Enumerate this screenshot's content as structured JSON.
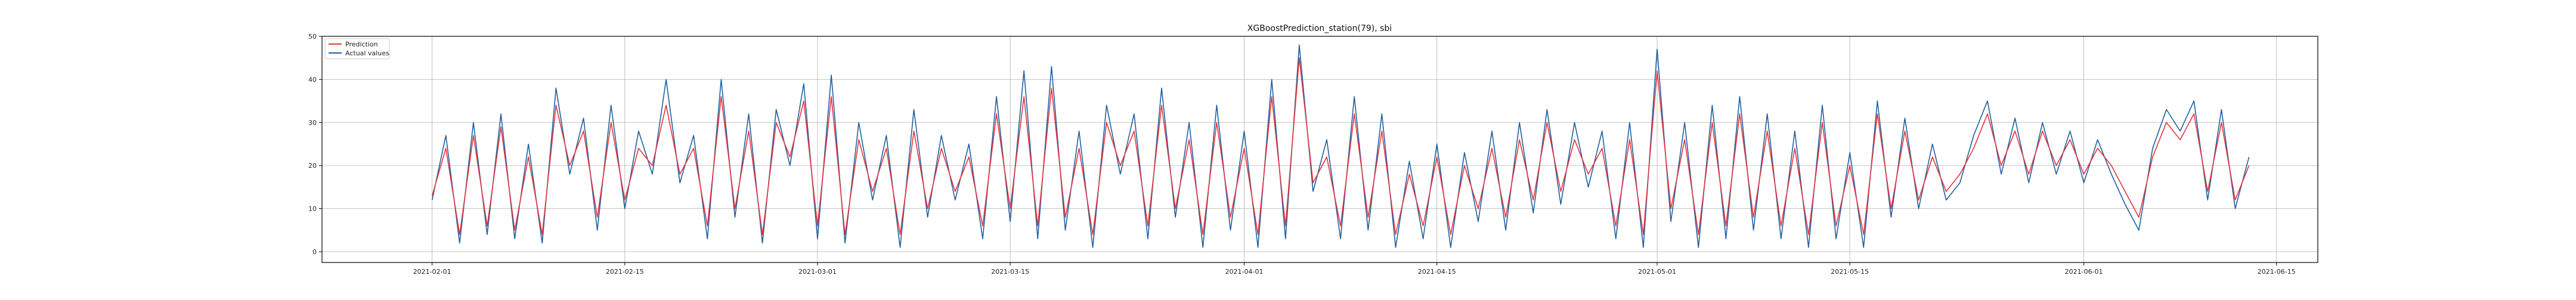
{
  "chart_data": {
    "type": "line",
    "title": "XGBoostPrediction_station(79), sbi",
    "xlabel": "",
    "ylabel": "",
    "x_range": [
      "2021-01-24",
      "2021-06-18"
    ],
    "ylim": [
      -2.5,
      50
    ],
    "x_ticks": [
      "2021-02-01",
      "2021-02-15",
      "2021-03-01",
      "2021-03-15",
      "2021-04-01",
      "2021-04-15",
      "2021-05-01",
      "2021-05-15",
      "2021-06-01",
      "2021-06-15"
    ],
    "y_ticks": [
      0,
      10,
      20,
      30,
      40,
      50
    ],
    "grid": true,
    "legend": "top-left",
    "series": [
      {
        "name": "Prediction",
        "color": "#e8323c",
        "points": [
          [
            "2021-02-01",
            13
          ],
          [
            "2021-02-02",
            24
          ],
          [
            "2021-02-03",
            4
          ],
          [
            "2021-02-04",
            27
          ],
          [
            "2021-02-05",
            6
          ],
          [
            "2021-02-06",
            29
          ],
          [
            "2021-02-07",
            5
          ],
          [
            "2021-02-08",
            22
          ],
          [
            "2021-02-09",
            4
          ],
          [
            "2021-02-10",
            34
          ],
          [
            "2021-02-11",
            20
          ],
          [
            "2021-02-12",
            28
          ],
          [
            "2021-02-13",
            8
          ],
          [
            "2021-02-14",
            30
          ],
          [
            "2021-02-15",
            12
          ],
          [
            "2021-02-16",
            24
          ],
          [
            "2021-02-17",
            20
          ],
          [
            "2021-02-18",
            34
          ],
          [
            "2021-02-19",
            18
          ],
          [
            "2021-02-20",
            24
          ],
          [
            "2021-02-21",
            6
          ],
          [
            "2021-02-22",
            36
          ],
          [
            "2021-02-23",
            10
          ],
          [
            "2021-02-24",
            28
          ],
          [
            "2021-02-25",
            4
          ],
          [
            "2021-02-26",
            30
          ],
          [
            "2021-02-27",
            22
          ],
          [
            "2021-02-28",
            35
          ],
          [
            "2021-03-01",
            6
          ],
          [
            "2021-03-02",
            36
          ],
          [
            "2021-03-03",
            4
          ],
          [
            "2021-03-04",
            26
          ],
          [
            "2021-03-05",
            14
          ],
          [
            "2021-03-06",
            24
          ],
          [
            "2021-03-07",
            4
          ],
          [
            "2021-03-08",
            28
          ],
          [
            "2021-03-09",
            10
          ],
          [
            "2021-03-10",
            24
          ],
          [
            "2021-03-11",
            14
          ],
          [
            "2021-03-12",
            22
          ],
          [
            "2021-03-13",
            6
          ],
          [
            "2021-03-14",
            32
          ],
          [
            "2021-03-15",
            10
          ],
          [
            "2021-03-16",
            36
          ],
          [
            "2021-03-17",
            6
          ],
          [
            "2021-03-18",
            38
          ],
          [
            "2021-03-19",
            8
          ],
          [
            "2021-03-20",
            24
          ],
          [
            "2021-03-21",
            4
          ],
          [
            "2021-03-22",
            30
          ],
          [
            "2021-03-23",
            20
          ],
          [
            "2021-03-24",
            28
          ],
          [
            "2021-03-25",
            6
          ],
          [
            "2021-03-26",
            34
          ],
          [
            "2021-03-27",
            10
          ],
          [
            "2021-03-28",
            26
          ],
          [
            "2021-03-29",
            4
          ],
          [
            "2021-03-30",
            30
          ],
          [
            "2021-03-31",
            8
          ],
          [
            "2021-04-01",
            24
          ],
          [
            "2021-04-02",
            4
          ],
          [
            "2021-04-03",
            36
          ],
          [
            "2021-04-04",
            6
          ],
          [
            "2021-04-05",
            45
          ],
          [
            "2021-04-06",
            16
          ],
          [
            "2021-04-07",
            22
          ],
          [
            "2021-04-08",
            6
          ],
          [
            "2021-04-09",
            32
          ],
          [
            "2021-04-10",
            8
          ],
          [
            "2021-04-11",
            28
          ],
          [
            "2021-04-12",
            4
          ],
          [
            "2021-04-13",
            18
          ],
          [
            "2021-04-14",
            6
          ],
          [
            "2021-04-15",
            22
          ],
          [
            "2021-04-16",
            4
          ],
          [
            "2021-04-17",
            20
          ],
          [
            "2021-04-18",
            10
          ],
          [
            "2021-04-19",
            24
          ],
          [
            "2021-04-20",
            8
          ],
          [
            "2021-04-21",
            26
          ],
          [
            "2021-04-22",
            12
          ],
          [
            "2021-04-23",
            30
          ],
          [
            "2021-04-24",
            14
          ],
          [
            "2021-04-25",
            26
          ],
          [
            "2021-04-26",
            18
          ],
          [
            "2021-04-27",
            24
          ],
          [
            "2021-04-28",
            6
          ],
          [
            "2021-04-29",
            26
          ],
          [
            "2021-04-30",
            4
          ],
          [
            "2021-05-01",
            42
          ],
          [
            "2021-05-02",
            10
          ],
          [
            "2021-05-03",
            26
          ],
          [
            "2021-05-04",
            4
          ],
          [
            "2021-05-05",
            30
          ],
          [
            "2021-05-06",
            6
          ],
          [
            "2021-05-07",
            32
          ],
          [
            "2021-05-08",
            8
          ],
          [
            "2021-05-09",
            28
          ],
          [
            "2021-05-10",
            6
          ],
          [
            "2021-05-11",
            24
          ],
          [
            "2021-05-12",
            4
          ],
          [
            "2021-05-13",
            30
          ],
          [
            "2021-05-14",
            6
          ],
          [
            "2021-05-15",
            20
          ],
          [
            "2021-05-16",
            4
          ],
          [
            "2021-05-17",
            32
          ],
          [
            "2021-05-18",
            10
          ],
          [
            "2021-05-19",
            28
          ],
          [
            "2021-05-20",
            12
          ],
          [
            "2021-05-21",
            22
          ],
          [
            "2021-05-22",
            14
          ],
          [
            "2021-05-23",
            18
          ],
          [
            "2021-05-24",
            24
          ],
          [
            "2021-05-25",
            32
          ],
          [
            "2021-05-26",
            20
          ],
          [
            "2021-05-27",
            28
          ],
          [
            "2021-05-28",
            18
          ],
          [
            "2021-05-29",
            28
          ],
          [
            "2021-05-30",
            20
          ],
          [
            "2021-05-31",
            26
          ],
          [
            "2021-06-01",
            18
          ],
          [
            "2021-06-02",
            24
          ],
          [
            "2021-06-03",
            20
          ],
          [
            "2021-06-04",
            14
          ],
          [
            "2021-06-05",
            8
          ],
          [
            "2021-06-06",
            22
          ],
          [
            "2021-06-07",
            30
          ],
          [
            "2021-06-08",
            26
          ],
          [
            "2021-06-09",
            32
          ],
          [
            "2021-06-10",
            14
          ],
          [
            "2021-06-11",
            30
          ],
          [
            "2021-06-12",
            12
          ],
          [
            "2021-06-13",
            20
          ]
        ]
      },
      {
        "name": "Actual values",
        "color": "#1f5f9e",
        "points": [
          [
            "2021-02-01",
            12
          ],
          [
            "2021-02-02",
            27
          ],
          [
            "2021-02-03",
            2
          ],
          [
            "2021-02-04",
            30
          ],
          [
            "2021-02-05",
            4
          ],
          [
            "2021-02-06",
            32
          ],
          [
            "2021-02-07",
            3
          ],
          [
            "2021-02-08",
            25
          ],
          [
            "2021-02-09",
            2
          ],
          [
            "2021-02-10",
            38
          ],
          [
            "2021-02-11",
            18
          ],
          [
            "2021-02-12",
            31
          ],
          [
            "2021-02-13",
            5
          ],
          [
            "2021-02-14",
            34
          ],
          [
            "2021-02-15",
            10
          ],
          [
            "2021-02-16",
            28
          ],
          [
            "2021-02-17",
            18
          ],
          [
            "2021-02-18",
            40
          ],
          [
            "2021-02-19",
            16
          ],
          [
            "2021-02-20",
            27
          ],
          [
            "2021-02-21",
            3
          ],
          [
            "2021-02-22",
            40
          ],
          [
            "2021-02-23",
            8
          ],
          [
            "2021-02-24",
            32
          ],
          [
            "2021-02-25",
            2
          ],
          [
            "2021-02-26",
            33
          ],
          [
            "2021-02-27",
            20
          ],
          [
            "2021-02-28",
            39
          ],
          [
            "2021-03-01",
            3
          ],
          [
            "2021-03-02",
            41
          ],
          [
            "2021-03-03",
            2
          ],
          [
            "2021-03-04",
            30
          ],
          [
            "2021-03-05",
            12
          ],
          [
            "2021-03-06",
            27
          ],
          [
            "2021-03-07",
            1
          ],
          [
            "2021-03-08",
            33
          ],
          [
            "2021-03-09",
            8
          ],
          [
            "2021-03-10",
            27
          ],
          [
            "2021-03-11",
            12
          ],
          [
            "2021-03-12",
            25
          ],
          [
            "2021-03-13",
            3
          ],
          [
            "2021-03-14",
            36
          ],
          [
            "2021-03-15",
            7
          ],
          [
            "2021-03-16",
            42
          ],
          [
            "2021-03-17",
            3
          ],
          [
            "2021-03-18",
            43
          ],
          [
            "2021-03-19",
            5
          ],
          [
            "2021-03-20",
            28
          ],
          [
            "2021-03-21",
            1
          ],
          [
            "2021-03-22",
            34
          ],
          [
            "2021-03-23",
            18
          ],
          [
            "2021-03-24",
            32
          ],
          [
            "2021-03-25",
            3
          ],
          [
            "2021-03-26",
            38
          ],
          [
            "2021-03-27",
            8
          ],
          [
            "2021-03-28",
            30
          ],
          [
            "2021-03-29",
            1
          ],
          [
            "2021-03-30",
            34
          ],
          [
            "2021-03-31",
            5
          ],
          [
            "2021-04-01",
            28
          ],
          [
            "2021-04-02",
            1
          ],
          [
            "2021-04-03",
            40
          ],
          [
            "2021-04-04",
            3
          ],
          [
            "2021-04-05",
            48
          ],
          [
            "2021-04-06",
            14
          ],
          [
            "2021-04-07",
            26
          ],
          [
            "2021-04-08",
            3
          ],
          [
            "2021-04-09",
            36
          ],
          [
            "2021-04-10",
            5
          ],
          [
            "2021-04-11",
            32
          ],
          [
            "2021-04-12",
            1
          ],
          [
            "2021-04-13",
            21
          ],
          [
            "2021-04-14",
            3
          ],
          [
            "2021-04-15",
            25
          ],
          [
            "2021-04-16",
            1
          ],
          [
            "2021-04-17",
            23
          ],
          [
            "2021-04-18",
            7
          ],
          [
            "2021-04-19",
            28
          ],
          [
            "2021-04-20",
            5
          ],
          [
            "2021-04-21",
            30
          ],
          [
            "2021-04-22",
            9
          ],
          [
            "2021-04-23",
            33
          ],
          [
            "2021-04-24",
            11
          ],
          [
            "2021-04-25",
            30
          ],
          [
            "2021-04-26",
            15
          ],
          [
            "2021-04-27",
            28
          ],
          [
            "2021-04-28",
            3
          ],
          [
            "2021-04-29",
            30
          ],
          [
            "2021-04-30",
            1
          ],
          [
            "2021-05-01",
            47
          ],
          [
            "2021-05-02",
            7
          ],
          [
            "2021-05-03",
            30
          ],
          [
            "2021-05-04",
            1
          ],
          [
            "2021-05-05",
            34
          ],
          [
            "2021-05-06",
            3
          ],
          [
            "2021-05-07",
            36
          ],
          [
            "2021-05-08",
            5
          ],
          [
            "2021-05-09",
            32
          ],
          [
            "2021-05-10",
            3
          ],
          [
            "2021-05-11",
            28
          ],
          [
            "2021-05-12",
            1
          ],
          [
            "2021-05-13",
            34
          ],
          [
            "2021-05-14",
            3
          ],
          [
            "2021-05-15",
            23
          ],
          [
            "2021-05-16",
            1
          ],
          [
            "2021-05-17",
            35
          ],
          [
            "2021-05-18",
            8
          ],
          [
            "2021-05-19",
            31
          ],
          [
            "2021-05-20",
            10
          ],
          [
            "2021-05-21",
            25
          ],
          [
            "2021-05-22",
            12
          ],
          [
            "2021-05-23",
            16
          ],
          [
            "2021-05-24",
            27
          ],
          [
            "2021-05-25",
            35
          ],
          [
            "2021-05-26",
            18
          ],
          [
            "2021-05-27",
            31
          ],
          [
            "2021-05-28",
            16
          ],
          [
            "2021-05-29",
            30
          ],
          [
            "2021-05-30",
            18
          ],
          [
            "2021-05-31",
            28
          ],
          [
            "2021-06-01",
            16
          ],
          [
            "2021-06-02",
            26
          ],
          [
            "2021-06-03",
            18
          ],
          [
            "2021-06-04",
            11
          ],
          [
            "2021-06-05",
            5
          ],
          [
            "2021-06-06",
            24
          ],
          [
            "2021-06-07",
            33
          ],
          [
            "2021-06-08",
            28
          ],
          [
            "2021-06-09",
            35
          ],
          [
            "2021-06-10",
            12
          ],
          [
            "2021-06-11",
            33
          ],
          [
            "2021-06-12",
            10
          ],
          [
            "2021-06-13",
            22
          ]
        ]
      }
    ]
  }
}
